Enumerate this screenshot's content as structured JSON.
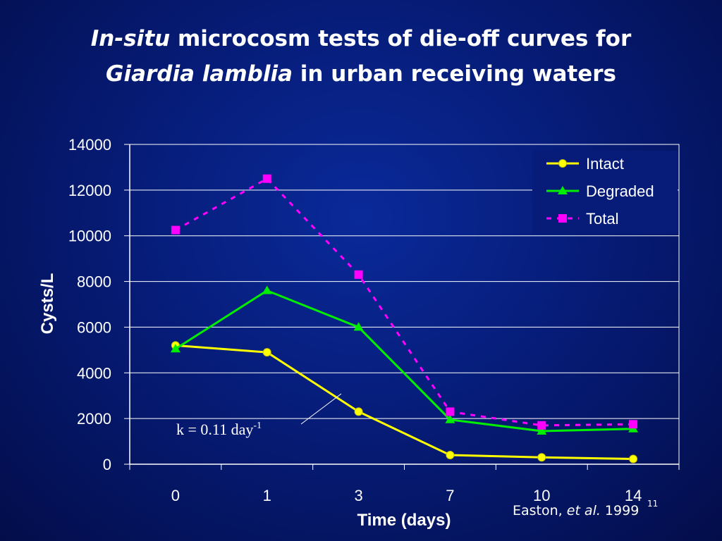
{
  "slide": {
    "title_line1_italic": "In-situ",
    "title_line1_rest": " microcosm tests of die-off curves for",
    "title_line2_italic": "Giardia lamblia",
    "title_line2_rest": " in urban receiving waters",
    "source_author": "Easton, ",
    "source_etal": "et al.",
    "source_year": " 1999",
    "slide_number": "11"
  },
  "chart_data": {
    "type": "line",
    "xlabel": "Time (days)",
    "ylabel": "Cysts/L",
    "categories": [
      "0",
      "1",
      "3",
      "7",
      "10",
      "14"
    ],
    "ylim": [
      0,
      14000
    ],
    "yticks": [
      0,
      2000,
      4000,
      6000,
      8000,
      10000,
      12000,
      14000
    ],
    "grid": true,
    "legend": "top-right",
    "series": [
      {
        "name": "Intact",
        "values": [
          5200,
          4900,
          2300,
          400,
          300,
          230
        ],
        "color": "#ffff00",
        "marker": "circle",
        "dash": false
      },
      {
        "name": "Degraded",
        "values": [
          5050,
          7600,
          6000,
          1950,
          1450,
          1550
        ],
        "color": "#00ee00",
        "marker": "triangle",
        "dash": false
      },
      {
        "name": "Total",
        "values": [
          10250,
          12500,
          8300,
          2300,
          1700,
          1750
        ],
        "color": "#ff00ff",
        "marker": "square",
        "dash": true
      }
    ],
    "annotation": {
      "text": "k = 0.11 day",
      "superscript": "-1"
    }
  }
}
